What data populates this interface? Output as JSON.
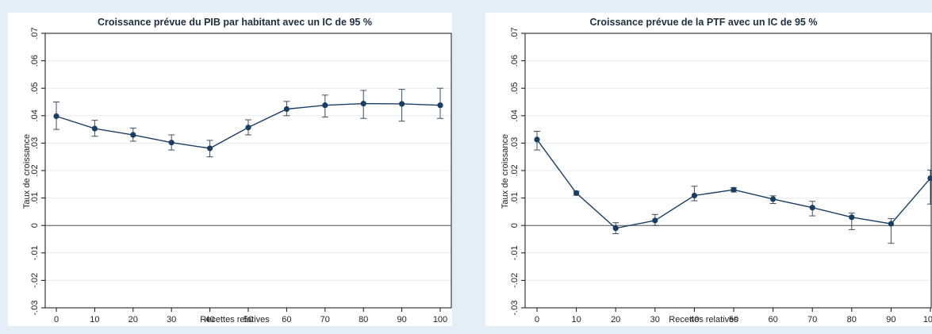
{
  "chart_data": [
    {
      "type": "line",
      "title": "Croissance prévue du PIB par habitant avec un IC de 95 %",
      "xlabel": "Recettes relatives",
      "ylabel": "Taux de croissance",
      "xlim": [
        0,
        100
      ],
      "ylim": [
        -0.03,
        0.07
      ],
      "x_ticks": [
        "0",
        "10",
        "20",
        "30",
        "40",
        "50",
        "60",
        "70",
        "80",
        "90",
        "100"
      ],
      "y_ticks": [
        "-.03",
        "-.02",
        "-.01",
        "0",
        ".01",
        ".02",
        ".03",
        ".04",
        ".05",
        ".06",
        ".07"
      ],
      "grid": true,
      "reference_line_y": 0,
      "x": [
        0,
        10,
        20,
        30,
        40,
        50,
        60,
        70,
        80,
        90,
        100
      ],
      "values": [
        0.0398,
        0.0353,
        0.033,
        0.0302,
        0.0281,
        0.0357,
        0.0424,
        0.0438,
        0.0444,
        0.0443,
        0.0438
      ],
      "ci_low": [
        0.035,
        0.0325,
        0.0307,
        0.0275,
        0.025,
        0.033,
        0.04,
        0.0395,
        0.039,
        0.038,
        0.039
      ],
      "ci_high": [
        0.045,
        0.0383,
        0.0355,
        0.033,
        0.031,
        0.0385,
        0.0452,
        0.0475,
        0.0492,
        0.0496,
        0.05
      ],
      "colors": {
        "series": "#1a3e63",
        "error_bar": "#3d4f60"
      }
    },
    {
      "type": "line",
      "title": "Croissance prévue de la PTF avec un IC de 95 %",
      "xlabel": "Recettes relatives",
      "ylabel": "Taux de croissance",
      "xlim": [
        0,
        100
      ],
      "ylim": [
        -0.03,
        0.07
      ],
      "x_ticks": [
        "0",
        "10",
        "20",
        "30",
        "40",
        "50",
        "60",
        "70",
        "80",
        "90",
        "100"
      ],
      "y_ticks": [
        "-.03",
        "-.02",
        "-.01",
        "0",
        ".01",
        ".02",
        ".03",
        ".04",
        ".05",
        ".06",
        ".07"
      ],
      "grid": true,
      "reference_line_y": 0,
      "x": [
        0,
        10,
        20,
        30,
        40,
        50,
        60,
        70,
        80,
        90,
        100
      ],
      "values": [
        0.0313,
        0.0118,
        -0.001,
        0.0018,
        0.0109,
        0.013,
        0.0096,
        0.0065,
        0.003,
        0.0006,
        0.0172
      ],
      "ci_low": [
        0.0275,
        0.011,
        -0.003,
        0.0,
        0.009,
        0.0122,
        0.008,
        0.0035,
        -0.0015,
        -0.0065,
        0.0078
      ],
      "ci_high": [
        0.0343,
        0.0125,
        0.001,
        0.004,
        0.0143,
        0.0138,
        0.0108,
        0.0088,
        0.0045,
        0.0025,
        0.0202
      ],
      "colors": {
        "series": "#1a3e63",
        "error_bar": "#3d4f60"
      }
    }
  ]
}
